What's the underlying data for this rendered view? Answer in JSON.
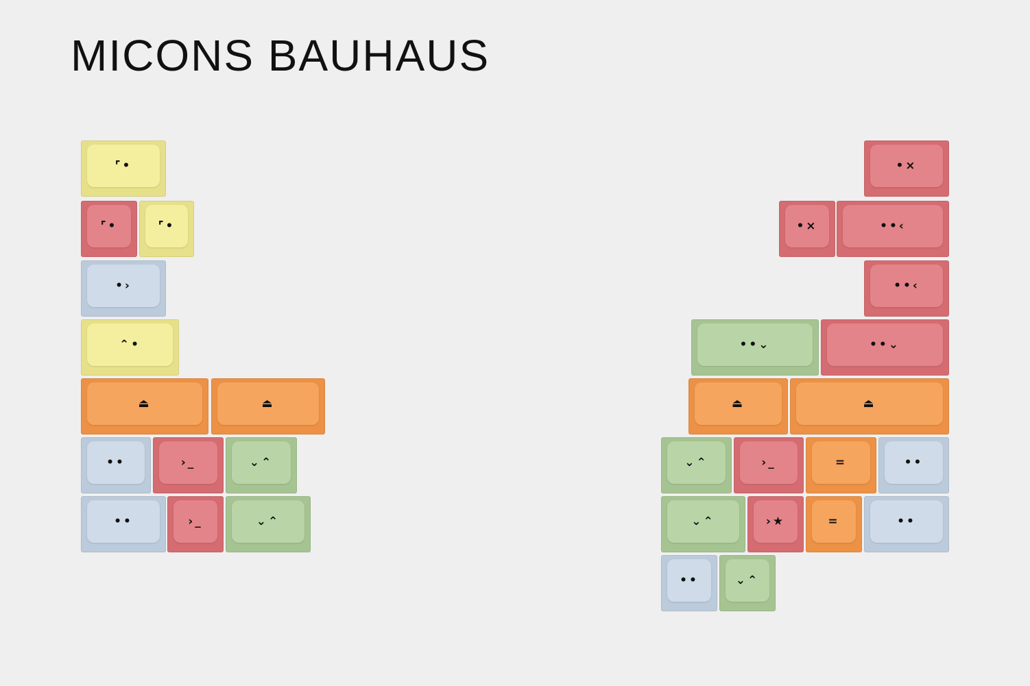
{
  "title": "MICONS BAUHAUS",
  "left_keys": [
    {
      "legend": "⌜•"
    },
    {
      "legend": "⌜•"
    },
    {
      "legend": "⌜•"
    },
    {
      "legend": "•›"
    },
    {
      "legend": "⌃•"
    },
    {
      "legend": "⏏"
    },
    {
      "legend": "⏏"
    },
    {
      "legend": "••"
    },
    {
      "legend": "›_"
    },
    {
      "legend": "⌄⌃"
    },
    {
      "legend": "••"
    },
    {
      "legend": "›_"
    },
    {
      "legend": "⌄⌃"
    }
  ],
  "right_keys": [
    {
      "legend": "•×"
    },
    {
      "legend": "•×"
    },
    {
      "legend": "••‹"
    },
    {
      "legend": "••‹"
    },
    {
      "legend": "••⌄"
    },
    {
      "legend": "••⌄"
    },
    {
      "legend": "⏏"
    },
    {
      "legend": "⏏"
    },
    {
      "legend": "⌄⌃"
    },
    {
      "legend": "›_"
    },
    {
      "legend": "="
    },
    {
      "legend": "••"
    },
    {
      "legend": "⌄⌃"
    },
    {
      "legend": "›★"
    },
    {
      "legend": "="
    },
    {
      "legend": "••"
    },
    {
      "legend": "••"
    },
    {
      "legend": "⌄⌃"
    }
  ]
}
